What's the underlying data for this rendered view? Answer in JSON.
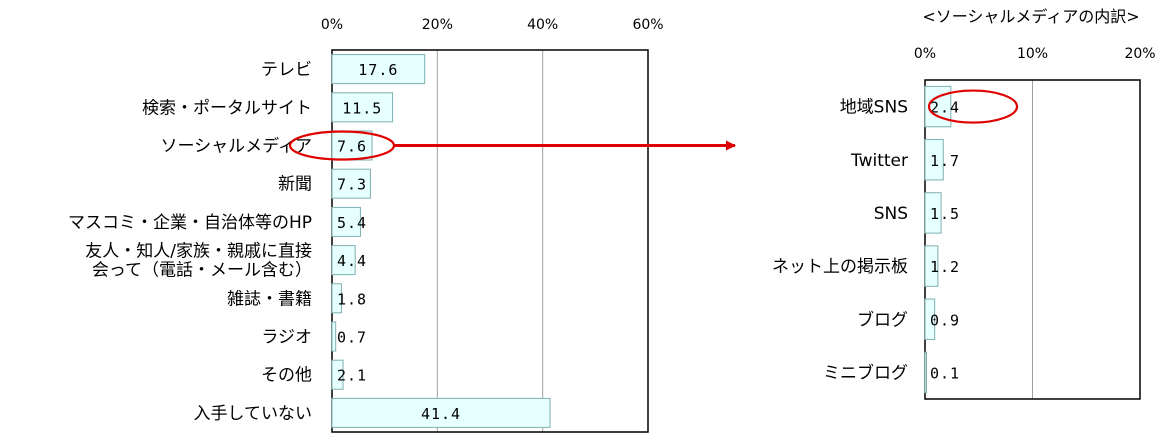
{
  "colors": {
    "bar_fill": "#e6ffff",
    "bar_stroke": "#7fb0b0",
    "highlight": "#e00000",
    "grid": "#a0a0a0",
    "frame": "#000000"
  },
  "chart_data": [
    {
      "type": "bar",
      "orientation": "horizontal",
      "title": "",
      "xlabel": "",
      "ylabel": "",
      "xlim": [
        0,
        60
      ],
      "ticks": [
        "0%",
        "20%",
        "40%",
        "60%"
      ],
      "grid": true,
      "categories": [
        [
          "テレビ"
        ],
        [
          "検索・ポータルサイト"
        ],
        [
          "ソーシャルメディア"
        ],
        [
          "新聞"
        ],
        [
          "マスコミ・企業・自治体等のHP"
        ],
        [
          "友人・知人/家族・親戚に直接",
          "会って（電話・メール含む）"
        ],
        [
          "雑誌・書籍"
        ],
        [
          "ラジオ"
        ],
        [
          "その他"
        ],
        [
          "入手していない"
        ]
      ],
      "values": [
        17.6,
        11.5,
        7.6,
        7.3,
        5.4,
        4.4,
        1.8,
        0.7,
        2.1,
        41.4
      ],
      "value_labels": [
        "17.6",
        "11.5",
        "7.6",
        "7.3",
        "5.4",
        "4.4",
        "1.8",
        "0.7",
        "2.1",
        "41.4"
      ],
      "highlighted_index": 2
    },
    {
      "type": "bar",
      "orientation": "horizontal",
      "title": "<ソーシャルメディアの内訳>",
      "xlabel": "",
      "ylabel": "",
      "xlim": [
        0,
        20
      ],
      "ticks": [
        "0%",
        "10%",
        "20%"
      ],
      "grid": true,
      "categories": [
        [
          "地域SNS"
        ],
        [
          "Twitter"
        ],
        [
          "SNS"
        ],
        [
          "ネット上の掲示板"
        ],
        [
          "ブログ"
        ],
        [
          "ミニブログ"
        ]
      ],
      "values": [
        2.4,
        1.7,
        1.5,
        1.2,
        0.9,
        0.1
      ],
      "value_labels": [
        "2.4",
        "1.7",
        "1.5",
        "1.2",
        "0.9",
        "0.1"
      ],
      "highlighted_index": 0
    }
  ]
}
